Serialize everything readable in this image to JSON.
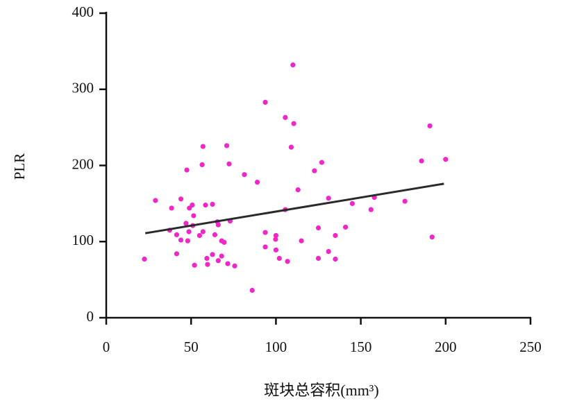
{
  "chart_data": {
    "type": "scatter",
    "xlabel": "斑块总容积(mm³)",
    "ylabel": "PLR",
    "color": "#f026c8",
    "x": [
      22.5,
      29,
      38.5,
      37.4,
      41.5,
      41.5,
      44,
      44,
      47.5,
      48,
      47,
      49,
      50.7,
      48.7,
      51,
      51.5,
      52,
      55,
      56.5,
      57,
      57,
      58.5,
      59.3,
      59.7,
      62.6,
      62.6,
      64,
      65.5,
      66,
      66,
      68,
      68,
      69.5,
      71,
      72.4,
      73,
      71.6,
      75.7,
      81.4,
      86,
      89,
      93.7,
      93.7,
      93.7,
      99.8,
      100,
      100,
      102,
      105.5,
      105.5,
      106.8,
      109,
      110,
      110.5,
      113,
      115,
      122.7,
      125,
      125,
      127,
      131,
      131,
      135,
      135,
      141,
      145,
      156,
      158,
      176,
      185.8,
      190.7,
      192,
      200
    ],
    "values": [
      77,
      154,
      144,
      115,
      109,
      84,
      156,
      102,
      194,
      101,
      124,
      144,
      148,
      113,
      121,
      134,
      69,
      108,
      201,
      225,
      113,
      148,
      78,
      70,
      149,
      83,
      109,
      126,
      122,
      75,
      101,
      81,
      99,
      226,
      202,
      127,
      71,
      68,
      188,
      36,
      178,
      283,
      112,
      93,
      103,
      108,
      89,
      78,
      263,
      142,
      74,
      224,
      332,
      255,
      168,
      101,
      193,
      118,
      78,
      204,
      157,
      87,
      108,
      77,
      119,
      150,
      142,
      158,
      153,
      206,
      252,
      106,
      208
    ],
    "fit_line": {
      "x": [
        23,
        199
      ],
      "y": [
        111,
        176
      ],
      "color": "#2a2a2a"
    },
    "xlim": [
      0,
      250
    ],
    "ylim": [
      0,
      400
    ],
    "xticks": [
      0,
      50,
      100,
      150,
      200,
      250
    ],
    "yticks": [
      0,
      100,
      200,
      300,
      400
    ]
  }
}
